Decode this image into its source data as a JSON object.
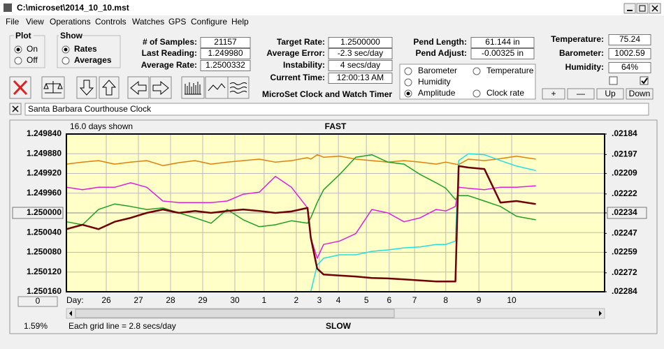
{
  "window": {
    "title": "C:\\microset\\2014_10_10.mst"
  },
  "menu": [
    "File",
    "View",
    "Operations",
    "Controls",
    "Watches",
    "GPS",
    "Configure",
    "Help"
  ],
  "plot_group": {
    "title": "Plot",
    "options": [
      "On",
      "Off"
    ],
    "selected": 0
  },
  "show_group": {
    "title": "Show",
    "options": [
      "Rates",
      "Averages"
    ],
    "selected": 0
  },
  "fields": [
    {
      "label": "# of Samples:",
      "value": "21157"
    },
    {
      "label": "Last Reading:",
      "value": "1.249980"
    },
    {
      "label": "Average Rate:",
      "value": "1.2500332"
    },
    {
      "label": "Target Rate:",
      "value": "1.2500000"
    },
    {
      "label": "Average Error:",
      "value": "-2.3 sec/day"
    },
    {
      "label": "Instability:",
      "value": "4 secs/day"
    },
    {
      "label": "Current Time:",
      "value": "12:00:13 AM"
    },
    {
      "label": "Pend Length:",
      "value": "61.144 in"
    },
    {
      "label": "Pend Adjust:",
      "value": "-0.00325 in"
    },
    {
      "label": "Temperature:",
      "value": "75.24"
    },
    {
      "label": "Barometer:",
      "value": "1002.59"
    },
    {
      "label": "Humidity:",
      "value": "64%"
    }
  ],
  "checkboxes": [
    false,
    true
  ],
  "caption": "MicroSet Clock and Watch Timer",
  "buttons": [
    "+",
    "—",
    "Up",
    "Down"
  ],
  "clock_name": "Santa Barbara Courthouse Clock",
  "chart_data": {
    "type": "line",
    "days_shown": "16.0 days shown",
    "top_label": "FAST",
    "bottom_label": "SLOW",
    "grid_note": "Each grid line = 2.8 secs/day",
    "status": "1.59%",
    "x_label": "Day:",
    "offset_button": "0",
    "selected_series": 3,
    "grid": true,
    "xlim": [
      0,
      16.74
    ],
    "xticks": [
      {
        "value": 1.24,
        "label": "26"
      },
      {
        "value": 2.24,
        "label": "27"
      },
      {
        "value": 3.24,
        "label": "28"
      },
      {
        "value": 4.24,
        "label": "29"
      },
      {
        "value": 5.24,
        "label": "30"
      },
      {
        "value": 6.15,
        "label": "1"
      },
      {
        "value": 7.15,
        "label": "2"
      },
      {
        "value": 7.87,
        "label": "3"
      },
      {
        "value": 8.46,
        "label": "4"
      },
      {
        "value": 9.33,
        "label": "5"
      },
      {
        "value": 10.04,
        "label": "6"
      },
      {
        "value": 10.83,
        "label": "7"
      },
      {
        "value": 11.8,
        "label": "8"
      },
      {
        "value": 12.83,
        "label": "9"
      },
      {
        "value": 13.85,
        "label": "10"
      }
    ],
    "ylim": [
      1.25016,
      1.24984
    ],
    "yticks": [
      {
        "value": 1.24984,
        "label": "1.249840"
      },
      {
        "value": 1.24988,
        "label": "1.249880"
      },
      {
        "value": 1.24992,
        "label": "1.249920"
      },
      {
        "value": 1.24996,
        "label": "1.249960"
      },
      {
        "value": 1.25,
        "label": "1.250000"
      },
      {
        "value": 1.25004,
        "label": "1.250040"
      },
      {
        "value": 1.25008,
        "label": "1.250080"
      },
      {
        "value": 1.25012,
        "label": "1.250120"
      },
      {
        "value": 1.25016,
        "label": "1.250160"
      }
    ],
    "y2lim": [
      0.02284,
      0.02184
    ],
    "y2ticks": [
      {
        "value": 0.02184,
        "label": ".02184"
      },
      {
        "value": 0.02197,
        "label": ".02197"
      },
      {
        "value": 0.02209,
        "label": ".02209"
      },
      {
        "value": 0.02222,
        "label": ".02222"
      },
      {
        "value": 0.02234,
        "label": ".02234"
      },
      {
        "value": 0.02247,
        "label": ".02247"
      },
      {
        "value": 0.02259,
        "label": ".02259"
      },
      {
        "value": 0.02272,
        "label": ".02272"
      },
      {
        "value": 0.02284,
        "label": ".02284"
      }
    ],
    "x": [
      0,
      0.5,
      1,
      1.5,
      2,
      2.5,
      3,
      3.5,
      4,
      4.5,
      5,
      5.5,
      6,
      6.5,
      7,
      7.5,
      7.6,
      7.8,
      8,
      8.5,
      9,
      9.5,
      10,
      10.5,
      11,
      11.5,
      11.8,
      12.1,
      12.2,
      12.5,
      13,
      13.5,
      14,
      14.6
    ],
    "series": [
      {
        "name": "Barometer",
        "color": "#e08010",
        "values": [
          1.249901,
          1.249897,
          1.249894,
          1.249901,
          1.249897,
          1.249894,
          1.249904,
          1.249898,
          1.249894,
          1.249901,
          1.249897,
          1.249894,
          1.249891,
          1.249897,
          1.249894,
          1.249888,
          1.249891,
          1.249882,
          1.249887,
          1.249885,
          1.249891,
          1.249894,
          1.249897,
          1.249894,
          1.249897,
          1.249901,
          1.249897,
          1.249901,
          1.249902,
          1.249891,
          1.249894,
          1.24989,
          1.249885,
          1.249891
        ]
      },
      {
        "name": "Temperature",
        "color": "#20a020",
        "values": [
          1.250018,
          1.250024,
          1.249993,
          1.249982,
          1.249987,
          1.249993,
          1.24999,
          1.25,
          1.25001,
          1.250021,
          1.249993,
          1.250014,
          1.250028,
          1.250024,
          1.250016,
          1.250021,
          1.25001,
          1.249979,
          1.249953,
          1.249922,
          1.249887,
          1.249882,
          1.249897,
          1.249901,
          1.249922,
          1.249939,
          1.24995,
          1.249973,
          1.249965,
          1.249965,
          1.249976,
          1.249987,
          1.250007,
          1.250014
        ]
      },
      {
        "name": "Humidity",
        "color": "#e020e0",
        "values": [
          1.249948,
          1.249953,
          1.249948,
          1.249948,
          1.249939,
          1.249948,
          1.249976,
          1.249979,
          1.249979,
          1.249979,
          1.249976,
          1.249962,
          1.249958,
          1.249926,
          1.249948,
          1.24999,
          1.25005,
          1.250092,
          1.250064,
          1.250057,
          1.250042,
          1.249993,
          1.25,
          1.250018,
          1.25001,
          1.249993,
          1.249996,
          1.249987,
          1.249948,
          1.24995,
          1.249953,
          1.249948,
          1.249948,
          1.249945
        ]
      },
      {
        "name": "Amplitude",
        "color": "#20e0e0",
        "values": [
          1.25016,
          1.25016,
          1.25016,
          1.25016,
          1.25016,
          1.25016,
          1.25016,
          1.25016,
          1.25016,
          1.25016,
          1.25016,
          1.25016,
          1.25016,
          1.25016,
          1.25016,
          1.25016,
          1.25016,
          1.250106,
          1.250092,
          1.250085,
          1.250085,
          1.250078,
          1.250075,
          1.250071,
          1.250069,
          1.250064,
          1.250064,
          1.250057,
          1.249894,
          1.24988,
          1.249882,
          1.249894,
          1.249905,
          1.249914
        ]
      },
      {
        "name": "Clock rate",
        "color": "#700000",
        "values": [
          1.250033,
          1.250024,
          1.250033,
          1.250018,
          1.25001,
          1.25,
          1.249993,
          1.25,
          1.249996,
          1.25,
          1.249996,
          1.249993,
          1.249996,
          1.25,
          1.249997,
          1.24999,
          1.25005,
          1.250113,
          1.250125,
          1.250127,
          1.250129,
          1.250132,
          1.250133,
          1.250135,
          1.250137,
          1.250139,
          1.250139,
          1.250139,
          1.249905,
          1.249908,
          1.249911,
          1.249979,
          1.249976,
          1.249982
        ]
      }
    ]
  }
}
